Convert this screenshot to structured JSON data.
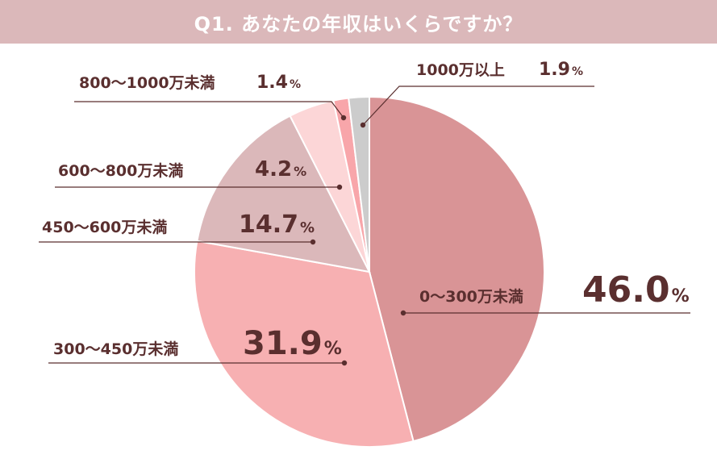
{
  "header": {
    "title": "Q1. あなたの年収はいくらですか？"
  },
  "chart_data": {
    "type": "pie",
    "title": "Q1. あなたの年収はいくらですか？",
    "unit": "%",
    "categories": [
      "0〜300万未満",
      "300〜450万未満",
      "450〜600万未満",
      "600〜800万未満",
      "800〜1000万未満",
      "1000万以上"
    ],
    "values": [
      46.0,
      31.9,
      14.7,
      4.2,
      1.4,
      1.9
    ],
    "value_labels": [
      "46.0",
      "31.9",
      "14.7",
      "4.2",
      "1.4",
      "1.9"
    ],
    "colors": [
      "#d99496",
      "#f7b0b2",
      "#dbb8ba",
      "#fcd6d7",
      "#f8a6aa",
      "#cccccc"
    ],
    "start": "12 o'clock",
    "direction": "clockwise",
    "slice_order": [
      0,
      1,
      2,
      3,
      4,
      5
    ],
    "leader_line_color": "#5a2f2f",
    "text_color": "#5a2f2f"
  }
}
